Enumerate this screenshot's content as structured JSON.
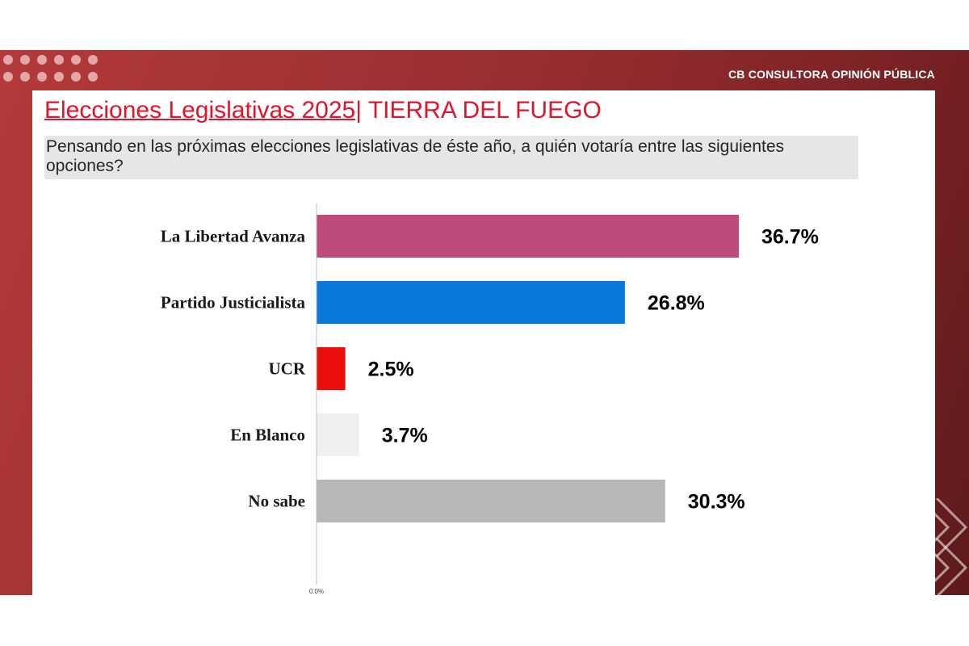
{
  "header": {
    "brand": "CB CONSULTORA OPINIÓN PÚBLICA"
  },
  "slide": {
    "title_main": "Elecciones Legislativas 2025",
    "title_rest": "| TIERRA DEL FUEGO",
    "question": "Pensando en las próximas elecciones legislativas de éste año, a quién votaría entre las siguientes opciones?"
  },
  "colors": {
    "background": "#9a2e30",
    "title": "#e0142b"
  },
  "chart_data": {
    "type": "bar",
    "orientation": "horizontal",
    "categories": [
      "La Libertad Avanza",
      "Partido Justicialista",
      "UCR",
      "En Blanco",
      "No sabe"
    ],
    "values": [
      36.7,
      26.8,
      2.5,
      3.7,
      30.3
    ],
    "value_labels": [
      "36.7%",
      "26.8%",
      "2.5%",
      "3.7%",
      "30.3%"
    ],
    "colors": [
      "#bf4b7c",
      "#0a78db",
      "#ec0d0d",
      "#efefef",
      "#b7b7b7"
    ],
    "tick_labels": [
      "0.0%"
    ],
    "xlim": [
      0,
      40
    ],
    "grid": false,
    "legend": "none"
  }
}
